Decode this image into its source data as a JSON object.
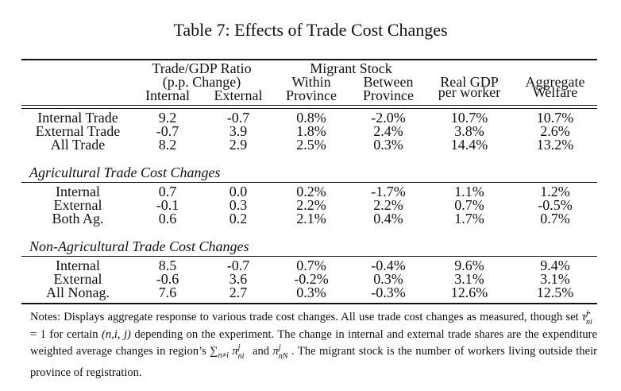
{
  "title": "Table 7: Effects of Trade Cost Changes",
  "header": {
    "group_trade": "Trade/GDP Ratio",
    "group_trade_sub": "(p.p. Change)",
    "group_migrant": "Migrant Stock",
    "columns": [
      {
        "line1": "",
        "line2": "Internal"
      },
      {
        "line1": "",
        "line2": "External"
      },
      {
        "line1": "Within",
        "line2": "Province"
      },
      {
        "line1": "Between",
        "line2": "Province"
      },
      {
        "line1": "Real GDP",
        "line2": "per worker"
      },
      {
        "line1": "Aggregate",
        "line2": "Welfare"
      }
    ]
  },
  "sections": [
    {
      "title": "",
      "rows": [
        {
          "label": "Internal Trade",
          "values": [
            "9.2",
            "-0.7",
            "0.8%",
            "-2.0%",
            "10.7%",
            "10.7%"
          ]
        },
        {
          "label": "External Trade",
          "values": [
            "-0.7",
            "3.9",
            "1.8%",
            "2.4%",
            "3.8%",
            "2.6%"
          ]
        },
        {
          "label": "All Trade",
          "values": [
            "8.2",
            "2.9",
            "2.5%",
            "0.3%",
            "14.4%",
            "13.2%"
          ]
        }
      ]
    },
    {
      "title": "Agricultural Trade Cost Changes",
      "rows": [
        {
          "label": "Internal",
          "values": [
            "0.7",
            "0.0",
            "0.2%",
            "-1.7%",
            "1.1%",
            "1.2%"
          ]
        },
        {
          "label": "External",
          "values": [
            "-0.1",
            "0.3",
            "2.2%",
            "2.2%",
            "0.7%",
            "-0.5%"
          ]
        },
        {
          "label": "Both Ag.",
          "values": [
            "0.6",
            "0.2",
            "2.1%",
            "0.4%",
            "1.7%",
            "0.7%"
          ]
        }
      ]
    },
    {
      "title": "Non-Agricultural Trade Cost Changes",
      "rows": [
        {
          "label": "Internal",
          "values": [
            "8.5",
            "-0.7",
            "0.7%",
            "-0.4%",
            "9.6%",
            "9.4%"
          ]
        },
        {
          "label": "External",
          "values": [
            "-0.6",
            "3.6",
            "-0.2%",
            "0.3%",
            "3.1%",
            "3.1%"
          ]
        },
        {
          "label": "All Nonag.",
          "values": [
            "7.6",
            "2.7",
            "0.3%",
            "-0.3%",
            "12.6%",
            "12.5%"
          ]
        }
      ]
    }
  ],
  "notes": {
    "p1": "Notes: Displays aggregate response to various trade cost changes. All use trade cost changes as measured, though set ",
    "tau": "τ̂",
    "tau_sup": "j",
    "tau_sub": "ni",
    "p2": " = 1 for certain ",
    "tuple": "(n,i, j)",
    "p3": " depending on the experiment. The change in internal and external trade shares are the expenditure weighted average changes in region’s ",
    "sum": "∑",
    "sum_sub": "n≠i",
    "pi": "π",
    "pi1_sup": "j",
    "pi1_sub": "ni",
    "p4": " and ",
    "pi2_sup": "j",
    "pi2_sub": "nN",
    "p5": ". The migrant stock is the number of workers living outside their province of registration."
  }
}
